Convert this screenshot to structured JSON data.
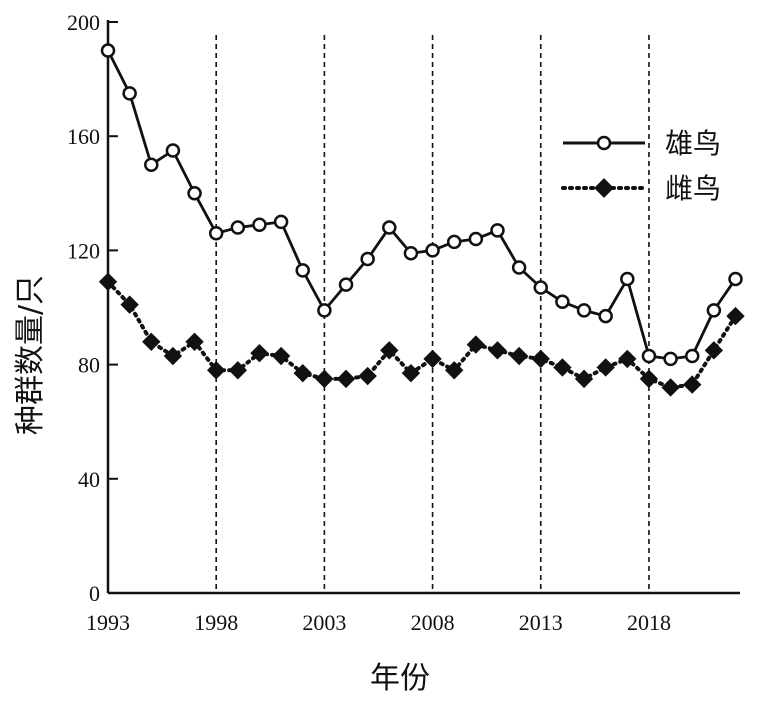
{
  "chart_data": {
    "type": "line",
    "xlabel": "年份",
    "ylabel": "种群数量/只",
    "ylim": [
      0,
      200
    ],
    "xlim": [
      1993,
      2022
    ],
    "x_ticks": [
      1993,
      1998,
      2003,
      2008,
      2013,
      2018
    ],
    "y_ticks": [
      0,
      40,
      80,
      120,
      160,
      200
    ],
    "reference_lines_x": [
      1998,
      2003,
      2008,
      2013,
      2018
    ],
    "x_tick_labels": [
      "1993",
      "1998",
      "2003",
      "2008",
      "2013",
      "2018"
    ],
    "y_tick_labels": [
      "0",
      "40",
      "80",
      "120",
      "160",
      "200"
    ],
    "legend_position": "top-right",
    "grid": false,
    "x": [
      1993,
      1994,
      1995,
      1996,
      1997,
      1998,
      1999,
      2000,
      2001,
      2002,
      2003,
      2004,
      2005,
      2006,
      2007,
      2008,
      2009,
      2010,
      2011,
      2012,
      2013,
      2014,
      2015,
      2016,
      2017,
      2018,
      2019,
      2020,
      2021,
      2022
    ],
    "series": [
      {
        "name": "雄鸟",
        "marker": "open-circle",
        "line_style": "solid",
        "values": [
          190,
          175,
          150,
          155,
          140,
          126,
          128,
          129,
          130,
          113,
          99,
          108,
          117,
          128,
          119,
          120,
          123,
          124,
          127,
          114,
          107,
          102,
          99,
          97,
          110,
          83,
          82,
          83,
          99,
          110
        ]
      },
      {
        "name": "雌鸟",
        "marker": "filled-diamond",
        "line_style": "dotted",
        "values": [
          109,
          101,
          88,
          83,
          88,
          78,
          78,
          84,
          83,
          77,
          75,
          75,
          76,
          85,
          77,
          82,
          78,
          87,
          85,
          83,
          82,
          79,
          75,
          79,
          82,
          75,
          72,
          73,
          85,
          97
        ]
      }
    ]
  }
}
